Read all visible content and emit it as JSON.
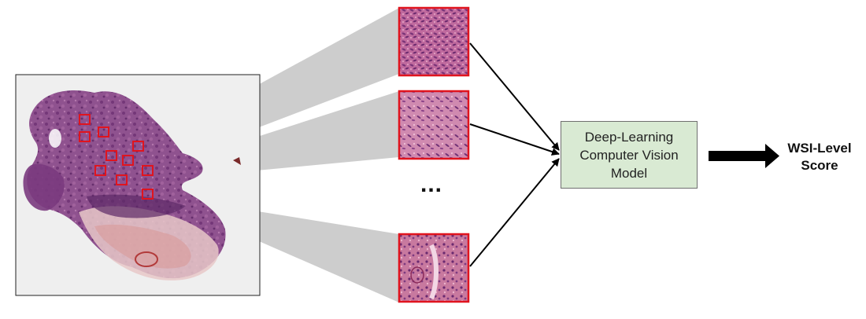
{
  "model": {
    "line1": "Deep-Learning",
    "line2": "Computer Vision",
    "line3": "Model"
  },
  "output": {
    "line1": "WSI-Level",
    "line2": "Score"
  },
  "ellipsis": "...",
  "patch_count_shown": 3,
  "highlight_box_count": 10,
  "colors": {
    "highlight": "#e0141e",
    "tissue": "#8a3f86",
    "projection": "#c8c8c8",
    "model_fill": "#d9ead3"
  }
}
